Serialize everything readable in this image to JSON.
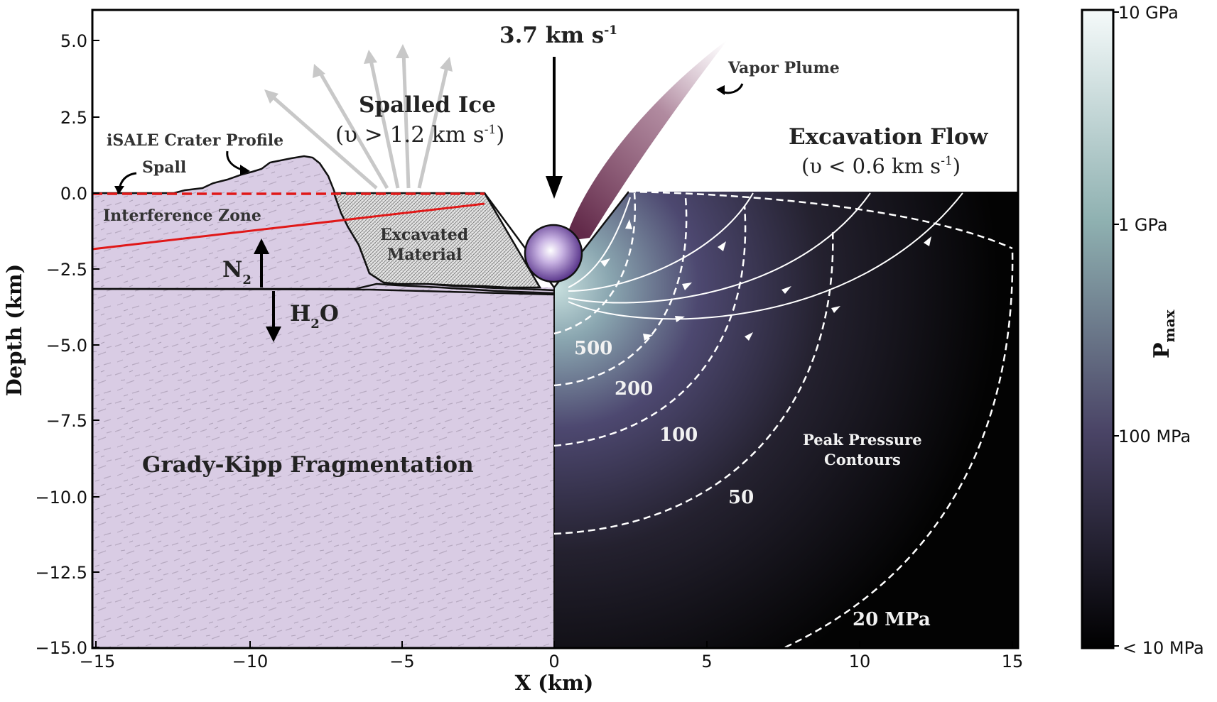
{
  "axes": {
    "xlabel": "X (km)",
    "ylabel": "Depth (km)",
    "xticks": [
      "−15",
      "−10",
      "−5",
      "0",
      "5",
      "10",
      "15"
    ],
    "yticks": [
      "5.0",
      "2.5",
      "0.0",
      "−2.5",
      "−5.0",
      "−7.5",
      "−10.0",
      "−12.5",
      "−15.0"
    ],
    "xlim": [
      -15,
      15
    ],
    "ylim": [
      -15,
      6
    ]
  },
  "colorbar": {
    "label_main": "P",
    "label_sub": "max",
    "ticks": [
      "10 GPa",
      "1 GPa",
      "100 MPa",
      "< 10 MPa"
    ],
    "color_top": "#f5fafa",
    "color_mid": "#8fb1b1",
    "color_low": "#4a4466",
    "color_bottom": "#000000"
  },
  "annotations": {
    "impact_velocity": "3.7 km s",
    "impact_velocity_exp": "-1",
    "vapor_plume": "Vapor Plume",
    "spalled_title": "Spalled Ice",
    "spalled_cond_a": "(υ > 1.2 km s",
    "spalled_cond_exp": "-1",
    "spalled_cond_b": ")",
    "excavation_title": "Excavation Flow",
    "excavation_cond_a": "(υ < 0.6 km s",
    "excavation_cond_exp": "-1",
    "excavation_cond_b": ")",
    "crater_profile": "iSALE Crater Profile",
    "spall": "Spall",
    "interference_zone": "Interference Zone",
    "excavated_line1": "Excavated",
    "excavated_line2": "Material",
    "n2_main": "N",
    "n2_sub": "2",
    "h2o_h": "H",
    "h2o_sub": "2",
    "h2o_o": "O",
    "fragmentation": "Grady-Kipp Fragmentation",
    "contours_line1": "Peak Pressure",
    "contours_line2": "Contours"
  },
  "contour_labels": [
    "500",
    "200",
    "100",
    "50",
    "20 MPa"
  ],
  "colors": {
    "ice": "#d9cce4",
    "impact_line": "#e01818",
    "impactor": "#6a3d9a",
    "plume": "#6b2c4a",
    "arrows_spall": "#c8c8c8"
  }
}
